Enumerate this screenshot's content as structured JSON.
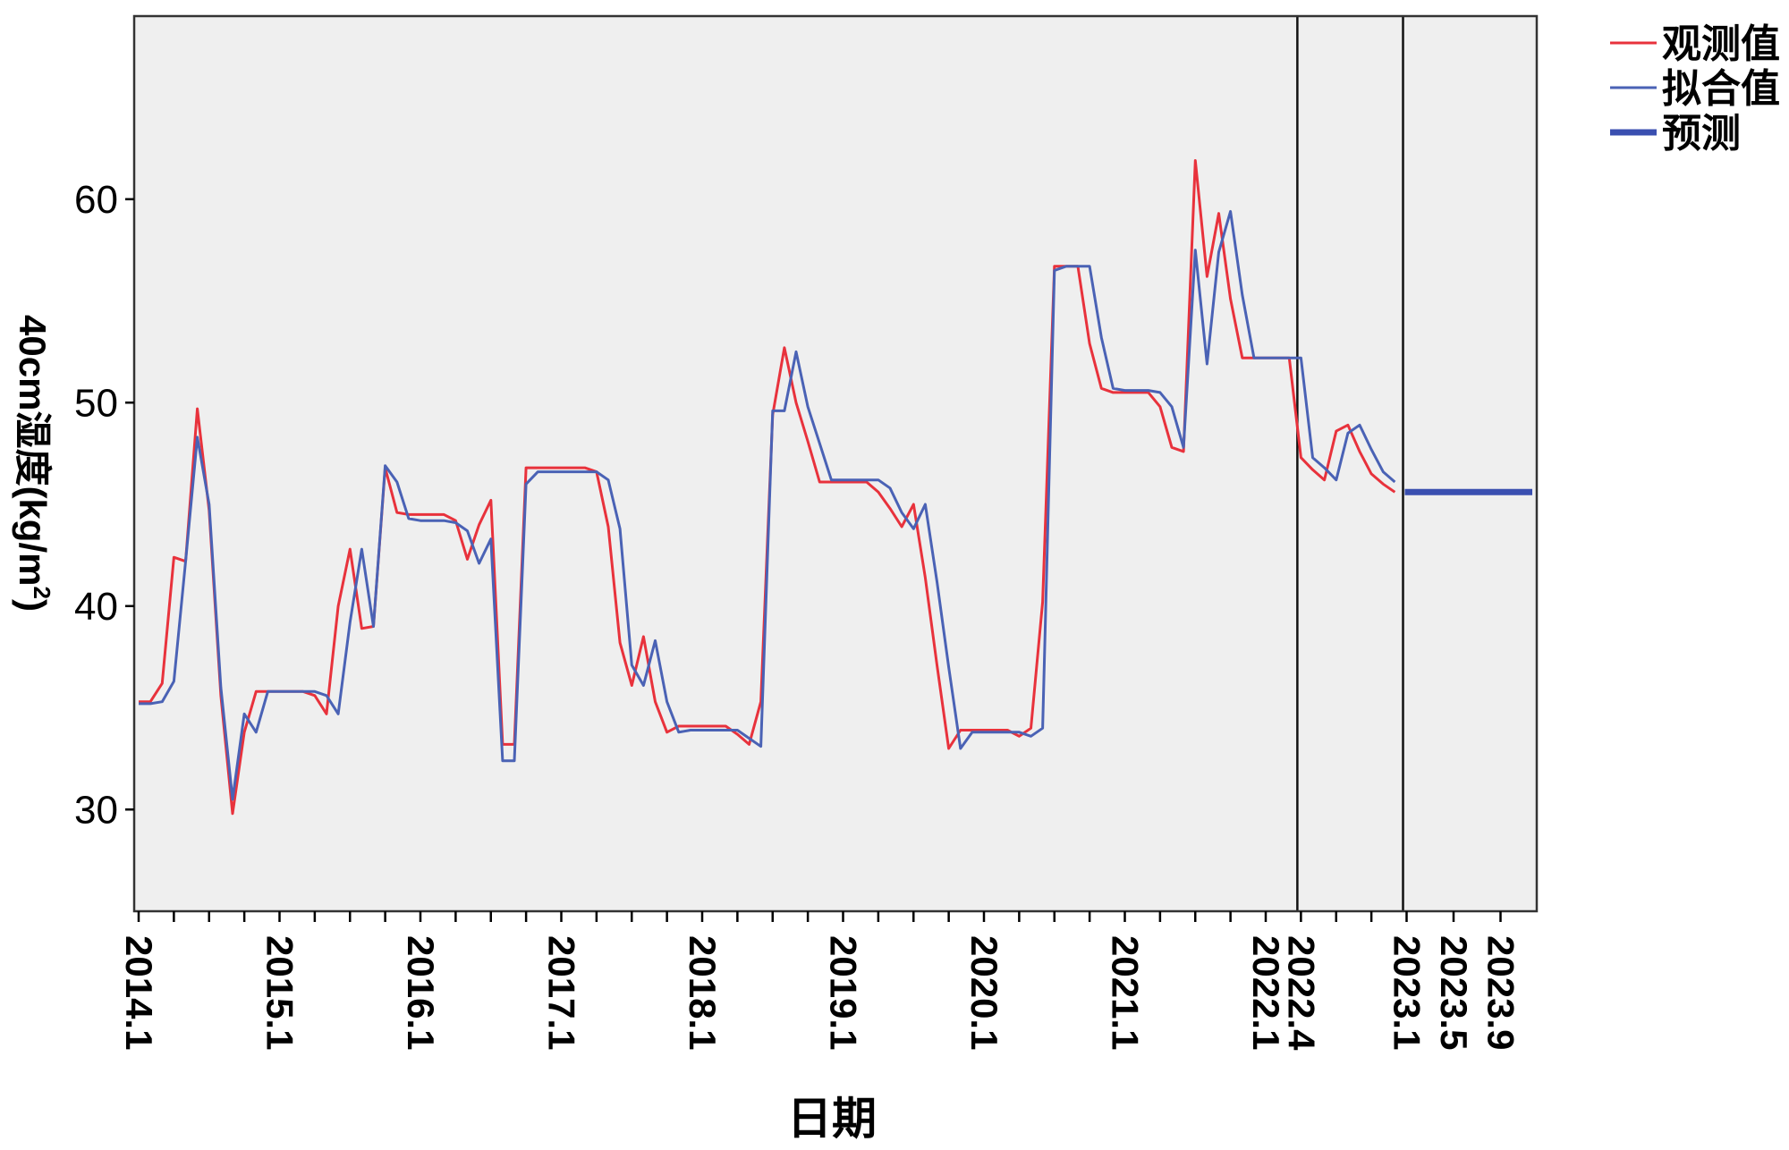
{
  "chart_data": {
    "type": "line",
    "title": "",
    "xlabel": "日期",
    "ylabel": "40cm湿度(kg/m²)",
    "ylabel_main": "40cm湿度(kg/m",
    "ylabel_sup": "2",
    "ylabel_tail": ")",
    "x_tick_labels": [
      "2014.1",
      "2015.1",
      "2016.1",
      "2017.1",
      "2018.1",
      "2019.1",
      "2020.1",
      "2021.1",
      "2022.1",
      "2022.4",
      "2023.1",
      "2023.5",
      "2023.9"
    ],
    "ylim": [
      25,
      69
    ],
    "y_ticks": [
      30,
      40,
      50,
      60
    ],
    "grid": false,
    "background": "#efefef",
    "legend_position": "top-right",
    "dividers_at": [
      "2022.4",
      "2023.1"
    ],
    "series": [
      {
        "name": "观测值",
        "color": "#e8323c",
        "x": [
          "2014.1",
          "2014.2",
          "2014.3",
          "2014.4",
          "2014.5",
          "2014.6",
          "2014.7",
          "2014.8",
          "2014.9",
          "2014.10",
          "2014.11",
          "2014.12",
          "2015.1",
          "2015.2",
          "2015.3",
          "2015.4",
          "2015.5",
          "2015.6",
          "2015.7",
          "2015.8",
          "2015.9",
          "2015.10",
          "2015.11",
          "2015.12",
          "2016.1",
          "2016.2",
          "2016.3",
          "2016.4",
          "2016.5",
          "2016.6",
          "2016.7",
          "2016.8",
          "2016.9",
          "2016.10",
          "2016.11",
          "2016.12",
          "2017.1",
          "2017.2",
          "2017.3",
          "2017.4",
          "2017.5",
          "2017.6",
          "2017.7",
          "2017.8",
          "2017.9",
          "2017.10",
          "2017.11",
          "2017.12",
          "2018.1",
          "2018.2",
          "2018.3",
          "2018.4",
          "2018.5",
          "2018.6",
          "2018.7",
          "2018.8",
          "2018.9",
          "2018.10",
          "2018.11",
          "2018.12",
          "2019.1",
          "2019.2",
          "2019.3",
          "2019.4",
          "2019.5",
          "2019.6",
          "2019.7",
          "2019.8",
          "2019.9",
          "2019.10",
          "2019.11",
          "2019.12",
          "2020.1",
          "2020.2",
          "2020.3",
          "2020.4",
          "2020.5",
          "2020.6",
          "2020.7",
          "2020.8",
          "2020.9",
          "2020.10",
          "2020.11",
          "2020.12",
          "2021.1",
          "2021.2",
          "2021.3",
          "2021.4",
          "2021.5",
          "2021.6",
          "2021.7",
          "2021.8",
          "2021.9",
          "2021.10",
          "2021.11",
          "2021.12",
          "2022.1",
          "2022.2",
          "2022.3",
          "2022.4",
          "2022.5",
          "2022.6",
          "2022.7",
          "2022.8",
          "2022.9",
          "2022.10",
          "2022.11",
          "2022.12"
        ],
        "values": [
          35.3,
          35.3,
          36.2,
          42.4,
          42.2,
          49.7,
          44.7,
          35.6,
          29.8,
          33.8,
          35.8,
          35.8,
          35.8,
          35.8,
          35.8,
          35.6,
          34.7,
          40.0,
          42.8,
          38.9,
          39.0,
          46.8,
          44.6,
          44.5,
          44.5,
          44.5,
          44.5,
          44.2,
          42.3,
          44.0,
          45.2,
          33.2,
          33.2,
          46.8,
          46.8,
          46.8,
          46.8,
          46.8,
          46.8,
          46.6,
          43.9,
          38.2,
          36.1,
          38.5,
          35.3,
          33.8,
          34.1,
          34.1,
          34.1,
          34.1,
          34.1,
          33.7,
          33.2,
          35.3,
          49.4,
          52.7,
          50.0,
          48.1,
          46.1,
          46.1,
          46.1,
          46.1,
          46.1,
          45.6,
          44.8,
          43.9,
          45.0,
          41.4,
          37.1,
          33.0,
          33.9,
          33.9,
          33.9,
          33.9,
          33.9,
          33.6,
          34.0,
          40.2,
          56.7,
          56.7,
          56.7,
          52.9,
          50.7,
          50.5,
          50.5,
          50.5,
          50.5,
          49.8,
          47.8,
          47.6,
          61.9,
          56.2,
          59.3,
          55.1,
          52.2,
          52.2,
          52.2,
          52.2,
          52.2,
          47.3,
          46.7,
          46.2,
          48.6,
          48.9,
          47.6,
          46.5,
          46.0,
          45.6
        ]
      },
      {
        "name": "拟合值",
        "color": "#4a62b5",
        "x": [
          "2014.1",
          "2014.2",
          "2014.3",
          "2014.4",
          "2014.5",
          "2014.6",
          "2014.7",
          "2014.8",
          "2014.9",
          "2014.10",
          "2014.11",
          "2014.12",
          "2015.1",
          "2015.2",
          "2015.3",
          "2015.4",
          "2015.5",
          "2015.6",
          "2015.7",
          "2015.8",
          "2015.9",
          "2015.10",
          "2015.11",
          "2015.12",
          "2016.1",
          "2016.2",
          "2016.3",
          "2016.4",
          "2016.5",
          "2016.6",
          "2016.7",
          "2016.8",
          "2016.9",
          "2016.10",
          "2016.11",
          "2016.12",
          "2017.1",
          "2017.2",
          "2017.3",
          "2017.4",
          "2017.5",
          "2017.6",
          "2017.7",
          "2017.8",
          "2017.9",
          "2017.10",
          "2017.11",
          "2017.12",
          "2018.1",
          "2018.2",
          "2018.3",
          "2018.4",
          "2018.5",
          "2018.6",
          "2018.7",
          "2018.8",
          "2018.9",
          "2018.10",
          "2018.11",
          "2018.12",
          "2019.1",
          "2019.2",
          "2019.3",
          "2019.4",
          "2019.5",
          "2019.6",
          "2019.7",
          "2019.8",
          "2019.9",
          "2019.10",
          "2019.11",
          "2019.12",
          "2020.1",
          "2020.2",
          "2020.3",
          "2020.4",
          "2020.5",
          "2020.6",
          "2020.7",
          "2020.8",
          "2020.9",
          "2020.10",
          "2020.11",
          "2020.12",
          "2021.1",
          "2021.2",
          "2021.3",
          "2021.4",
          "2021.5",
          "2021.6",
          "2021.7",
          "2021.8",
          "2021.9",
          "2021.10",
          "2021.11",
          "2021.12",
          "2022.1",
          "2022.2",
          "2022.3",
          "2022.4",
          "2022.5",
          "2022.6",
          "2022.7",
          "2022.8",
          "2022.9",
          "2022.10",
          "2022.11",
          "2022.12"
        ],
        "values": [
          35.2,
          35.2,
          35.3,
          36.3,
          42.2,
          48.3,
          45.0,
          36.0,
          30.5,
          34.7,
          33.8,
          35.8,
          35.8,
          35.8,
          35.8,
          35.8,
          35.6,
          34.7,
          39.2,
          42.8,
          39.0,
          46.9,
          46.1,
          44.3,
          44.2,
          44.2,
          44.2,
          44.1,
          43.7,
          42.1,
          43.3,
          32.4,
          32.4,
          46.0,
          46.6,
          46.6,
          46.6,
          46.6,
          46.6,
          46.6,
          46.2,
          43.8,
          37.1,
          36.1,
          38.3,
          35.3,
          33.8,
          33.9,
          33.9,
          33.9,
          33.9,
          33.9,
          33.5,
          33.1,
          49.6,
          49.6,
          52.5,
          49.8,
          48.0,
          46.2,
          46.2,
          46.2,
          46.2,
          46.2,
          45.8,
          44.6,
          43.8,
          45.0,
          41.2,
          37.0,
          33.0,
          33.8,
          33.8,
          33.8,
          33.8,
          33.8,
          33.6,
          34.0,
          56.5,
          56.7,
          56.7,
          56.7,
          53.2,
          50.7,
          50.6,
          50.6,
          50.6,
          50.5,
          49.8,
          47.8,
          57.5,
          51.9,
          57.4,
          59.4,
          55.3,
          52.2,
          52.2,
          52.2,
          52.2,
          52.2,
          47.3,
          46.8,
          46.2,
          48.5,
          48.9,
          47.7,
          46.6,
          46.1
        ]
      },
      {
        "name": "预测",
        "color": "#3a4fb0",
        "x": [
          "2023.1",
          "2023.12"
        ],
        "values": [
          45.6,
          45.6
        ]
      }
    ]
  }
}
